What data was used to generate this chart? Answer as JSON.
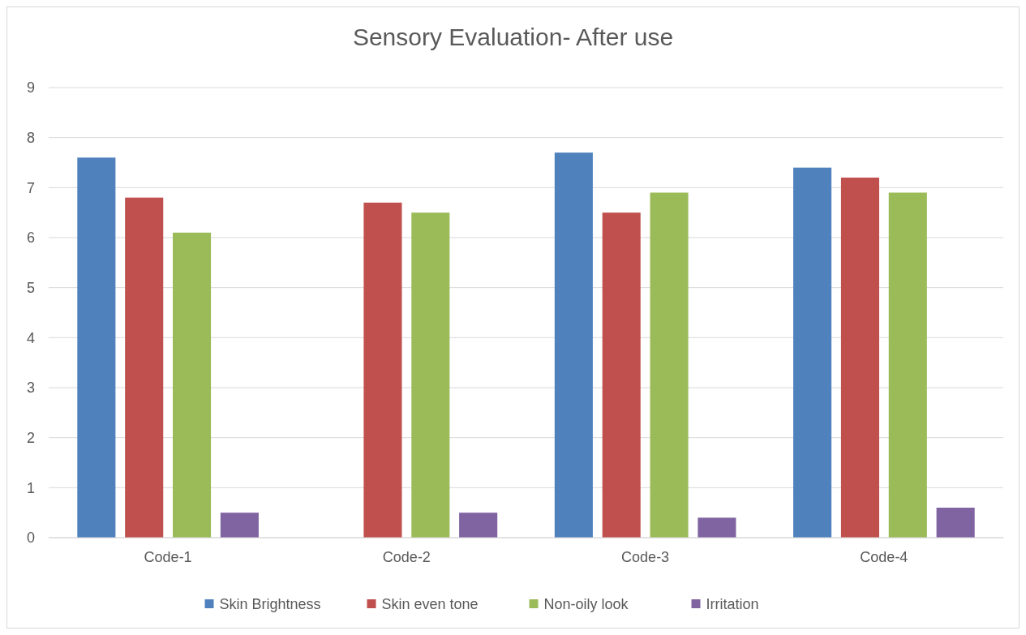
{
  "chart_data": {
    "type": "bar",
    "title": "Sensory Evaluation- After use",
    "categories": [
      "Code-1",
      "Code-2",
      "Code-3",
      "Code-4"
    ],
    "series": [
      {
        "name": "Skin Brightness",
        "color": "#4f81bd",
        "values": [
          7.6,
          null,
          7.7,
          7.4
        ]
      },
      {
        "name": "Skin even tone",
        "color": "#c0504d",
        "values": [
          6.8,
          6.7,
          6.5,
          7.2
        ]
      },
      {
        "name": "Non-oily look",
        "color": "#9bbb59",
        "values": [
          6.1,
          6.5,
          6.9,
          6.9
        ]
      },
      {
        "name": "Irritation",
        "color": "#8064a2",
        "values": [
          0.5,
          0.5,
          0.4,
          0.6
        ]
      }
    ],
    "ylim": [
      0,
      9
    ],
    "yticks": [
      0,
      1,
      2,
      3,
      4,
      5,
      6,
      7,
      8,
      9
    ],
    "grid": "y",
    "legend": "bottom"
  }
}
